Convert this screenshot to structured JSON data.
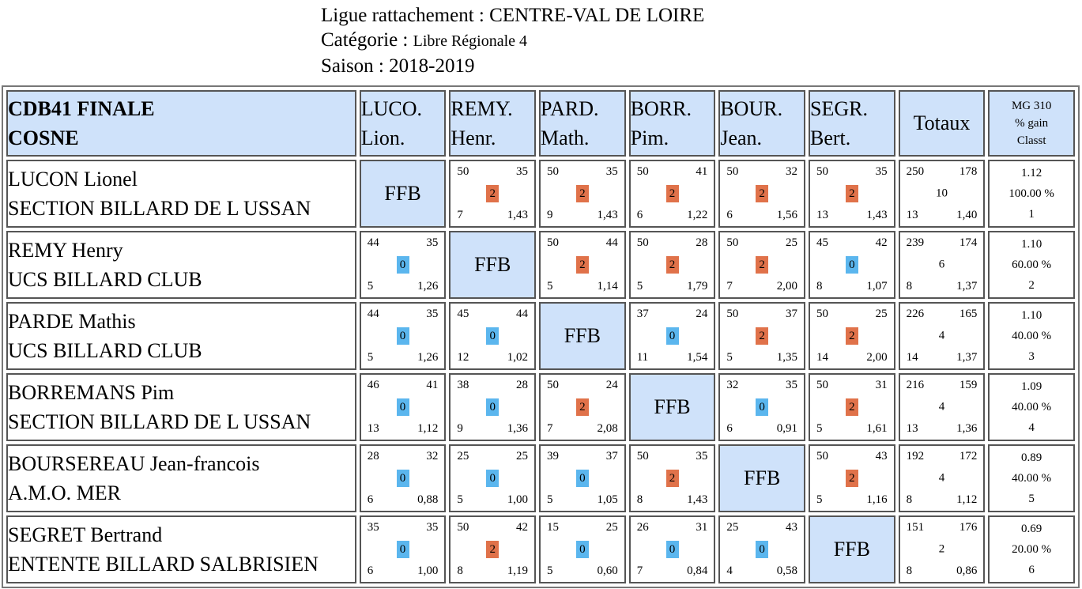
{
  "header": {
    "ligue_label": "Ligue rattachement :",
    "ligue_value": "CENTRE-VAL DE LOIRE",
    "categorie_label": "Catégorie :",
    "categorie_value": "Libre Régionale 4",
    "saison_label": "Saison :",
    "saison_value": "2018-2019"
  },
  "table": {
    "title_line1": "CDB41 FINALE",
    "title_line2": "COSNE",
    "columns": [
      {
        "line1": "LUCO.",
        "line2": "Lion."
      },
      {
        "line1": "REMY.",
        "line2": "Henr."
      },
      {
        "line1": "PARD.",
        "line2": "Math."
      },
      {
        "line1": "BORR.",
        "line2": "Pim."
      },
      {
        "line1": "BOUR.",
        "line2": "Jean."
      },
      {
        "line1": "SEGR.",
        "line2": "Bert."
      }
    ],
    "totaux_label": "Totaux",
    "mg_labels": [
      "MG 310",
      "% gain",
      "Classt"
    ],
    "ffb_label": "FFB",
    "colors": {
      "header_bg": "#cfe2fa",
      "win_badge": "#e0724a",
      "loss_badge": "#5bb6ee"
    },
    "rows": [
      {
        "name": "LUCON Lionel",
        "club": "SECTION BILLARD DE L USSAN",
        "cells": [
          null,
          {
            "pts": "50",
            "opp": "35",
            "score": "2",
            "win": true,
            "rep": "7",
            "moy": "1,43"
          },
          {
            "pts": "50",
            "opp": "35",
            "score": "2",
            "win": true,
            "rep": "9",
            "moy": "1,43"
          },
          {
            "pts": "50",
            "opp": "41",
            "score": "2",
            "win": true,
            "rep": "6",
            "moy": "1,22"
          },
          {
            "pts": "50",
            "opp": "32",
            "score": "2",
            "win": true,
            "rep": "6",
            "moy": "1,56"
          },
          {
            "pts": "50",
            "opp": "35",
            "score": "2",
            "win": true,
            "rep": "13",
            "moy": "1,43"
          }
        ],
        "totals": {
          "pts": "250",
          "opp": "178",
          "score": "10",
          "rep": "13",
          "moy": "1,40"
        },
        "mg": {
          "mg": "1.12",
          "gain": "100.00 %",
          "classt": "1"
        }
      },
      {
        "name": "REMY Henry",
        "club": "UCS BILLARD CLUB",
        "cells": [
          {
            "pts": "44",
            "opp": "35",
            "score": "0",
            "win": false,
            "rep": "5",
            "moy": "1,26"
          },
          null,
          {
            "pts": "50",
            "opp": "44",
            "score": "2",
            "win": true,
            "rep": "5",
            "moy": "1,14"
          },
          {
            "pts": "50",
            "opp": "28",
            "score": "2",
            "win": true,
            "rep": "5",
            "moy": "1,79"
          },
          {
            "pts": "50",
            "opp": "25",
            "score": "2",
            "win": true,
            "rep": "7",
            "moy": "2,00"
          },
          {
            "pts": "45",
            "opp": "42",
            "score": "0",
            "win": false,
            "rep": "8",
            "moy": "1,07"
          }
        ],
        "totals": {
          "pts": "239",
          "opp": "174",
          "score": "6",
          "rep": "8",
          "moy": "1,37"
        },
        "mg": {
          "mg": "1.10",
          "gain": "60.00 %",
          "classt": "2"
        }
      },
      {
        "name": "PARDE Mathis",
        "club": "UCS BILLARD CLUB",
        "cells": [
          {
            "pts": "44",
            "opp": "35",
            "score": "0",
            "win": false,
            "rep": "5",
            "moy": "1,26"
          },
          {
            "pts": "45",
            "opp": "44",
            "score": "0",
            "win": false,
            "rep": "12",
            "moy": "1,02"
          },
          null,
          {
            "pts": "37",
            "opp": "24",
            "score": "0",
            "win": false,
            "rep": "11",
            "moy": "1,54"
          },
          {
            "pts": "50",
            "opp": "37",
            "score": "2",
            "win": true,
            "rep": "5",
            "moy": "1,35"
          },
          {
            "pts": "50",
            "opp": "25",
            "score": "2",
            "win": true,
            "rep": "14",
            "moy": "2,00"
          }
        ],
        "totals": {
          "pts": "226",
          "opp": "165",
          "score": "4",
          "rep": "14",
          "moy": "1,37"
        },
        "mg": {
          "mg": "1.10",
          "gain": "40.00 %",
          "classt": "3"
        }
      },
      {
        "name": "BORREMANS Pim",
        "club": "SECTION BILLARD DE L USSAN",
        "cells": [
          {
            "pts": "46",
            "opp": "41",
            "score": "0",
            "win": false,
            "rep": "13",
            "moy": "1,12"
          },
          {
            "pts": "38",
            "opp": "28",
            "score": "0",
            "win": false,
            "rep": "9",
            "moy": "1,36"
          },
          {
            "pts": "50",
            "opp": "24",
            "score": "2",
            "win": true,
            "rep": "7",
            "moy": "2,08"
          },
          null,
          {
            "pts": "32",
            "opp": "35",
            "score": "0",
            "win": false,
            "rep": "6",
            "moy": "0,91"
          },
          {
            "pts": "50",
            "opp": "31",
            "score": "2",
            "win": true,
            "rep": "5",
            "moy": "1,61"
          }
        ],
        "totals": {
          "pts": "216",
          "opp": "159",
          "score": "4",
          "rep": "13",
          "moy": "1,36"
        },
        "mg": {
          "mg": "1.09",
          "gain": "40.00 %",
          "classt": "4"
        }
      },
      {
        "name": "BOURSEREAU Jean-francois",
        "club": "A.M.O. MER",
        "cells": [
          {
            "pts": "28",
            "opp": "32",
            "score": "0",
            "win": false,
            "rep": "6",
            "moy": "0,88"
          },
          {
            "pts": "25",
            "opp": "25",
            "score": "0",
            "win": false,
            "rep": "5",
            "moy": "1,00"
          },
          {
            "pts": "39",
            "opp": "37",
            "score": "0",
            "win": false,
            "rep": "5",
            "moy": "1,05"
          },
          {
            "pts": "50",
            "opp": "35",
            "score": "2",
            "win": true,
            "rep": "8",
            "moy": "1,43"
          },
          null,
          {
            "pts": "50",
            "opp": "43",
            "score": "2",
            "win": true,
            "rep": "5",
            "moy": "1,16"
          }
        ],
        "totals": {
          "pts": "192",
          "opp": "172",
          "score": "4",
          "rep": "8",
          "moy": "1,12"
        },
        "mg": {
          "mg": "0.89",
          "gain": "40.00 %",
          "classt": "5"
        }
      },
      {
        "name": "SEGRET Bertrand",
        "club": "ENTENTE BILLARD SALBRISIEN",
        "cells": [
          {
            "pts": "35",
            "opp": "35",
            "score": "0",
            "win": false,
            "rep": "6",
            "moy": "1,00"
          },
          {
            "pts": "50",
            "opp": "42",
            "score": "2",
            "win": true,
            "rep": "8",
            "moy": "1,19"
          },
          {
            "pts": "15",
            "opp": "25",
            "score": "0",
            "win": false,
            "rep": "5",
            "moy": "0,60"
          },
          {
            "pts": "26",
            "opp": "31",
            "score": "0",
            "win": false,
            "rep": "7",
            "moy": "0,84"
          },
          {
            "pts": "25",
            "opp": "43",
            "score": "0",
            "win": false,
            "rep": "4",
            "moy": "0,58"
          },
          null
        ],
        "totals": {
          "pts": "151",
          "opp": "176",
          "score": "2",
          "rep": "8",
          "moy": "0,86"
        },
        "mg": {
          "mg": "0.69",
          "gain": "20.00 %",
          "classt": "6"
        }
      }
    ]
  }
}
